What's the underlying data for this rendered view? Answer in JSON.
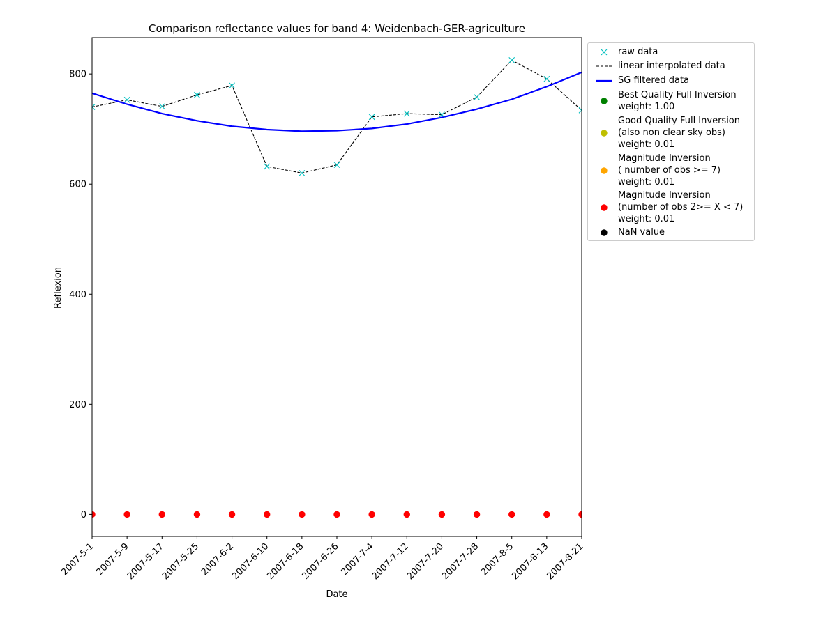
{
  "chart_data": {
    "type": "line",
    "title": "Comparison reflectance values for band 4: Weidenbach-GER-agriculture",
    "xlabel": "Date",
    "ylabel": "Reflexion",
    "x": [
      "2007-5-1",
      "2007-5-9",
      "2007-5-17",
      "2007-5-25",
      "2007-6-2",
      "2007-6-10",
      "2007-6-18",
      "2007-6-26",
      "2007-7-4",
      "2007-7-12",
      "2007-7-20",
      "2007-7-28",
      "2007-8-5",
      "2007-8-13",
      "2007-8-21"
    ],
    "ylim": [
      -40,
      866
    ],
    "yticks": [
      0,
      200,
      400,
      600,
      800
    ],
    "grid": false,
    "legend_position": "outside-right",
    "series": [
      {
        "name": "raw data",
        "style": "x-marker",
        "color": "#00bfbf",
        "values": [
          740,
          753,
          741,
          762,
          779,
          632,
          620,
          635,
          722,
          728,
          726,
          758,
          825,
          791,
          734
        ]
      },
      {
        "name": "linear interpolated data",
        "style": "dashed",
        "color": "#000000",
        "values": [
          740,
          753,
          741,
          762,
          779,
          632,
          620,
          635,
          722,
          728,
          726,
          758,
          825,
          791,
          734
        ]
      },
      {
        "name": "SG filtered data",
        "style": "solid",
        "color": "#0000ff",
        "values": [
          765,
          745,
          728,
          715,
          705,
          699,
          696,
          697,
          701,
          709,
          721,
          736,
          754,
          777,
          803
        ]
      },
      {
        "name": "Magnitude Inversion\n(number of obs 2>= X < 7)\nweight: 0.01",
        "style": "dot",
        "color": "#ff0000",
        "values": [
          0,
          0,
          0,
          0,
          0,
          0,
          0,
          0,
          0,
          0,
          0,
          0,
          0,
          0,
          0
        ]
      }
    ],
    "legend": [
      {
        "label": "raw data",
        "marker": "x",
        "color": "#00bfbf"
      },
      {
        "label": "linear interpolated data",
        "marker": "dashed-line",
        "color": "#000000"
      },
      {
        "label": "SG filtered data",
        "marker": "solid-line",
        "color": "#0000ff"
      },
      {
        "label": "Best Quality Full Inversion\nweight: 1.00",
        "marker": "dot",
        "color": "#008000"
      },
      {
        "label": "Good Quality Full Inversion\n(also non clear sky obs)\nweight: 0.01",
        "marker": "dot",
        "color": "#bfbf00"
      },
      {
        "label": "Magnitude Inversion\n( number of obs >= 7)\nweight: 0.01",
        "marker": "dot",
        "color": "#ffa500"
      },
      {
        "label": "Magnitude Inversion\n(number of obs 2>= X < 7)\nweight: 0.01",
        "marker": "dot",
        "color": "#ff0000"
      },
      {
        "label": "NaN value",
        "marker": "dot",
        "color": "#000000"
      }
    ]
  }
}
